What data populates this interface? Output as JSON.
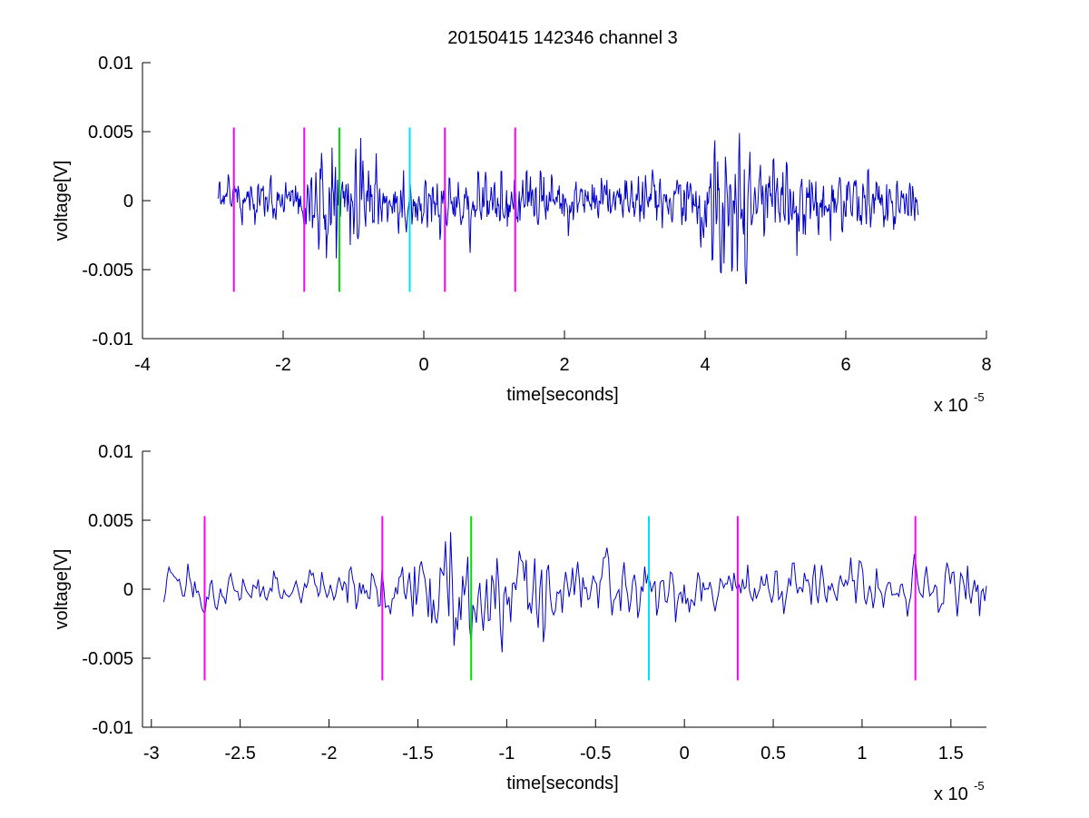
{
  "title": "20150415 142346 channel 3",
  "chart_data": [
    {
      "type": "line",
      "title": "20150415 142346 channel 3",
      "xlabel": "time[seconds]",
      "ylabel": "voltage[V]",
      "x_exponent_base": "x 10",
      "x_exponent_power": "-5",
      "xlim": [
        -4,
        8
      ],
      "ylim": [
        -0.01,
        0.01
      ],
      "x_ticks": [
        -4,
        -2,
        0,
        2,
        4,
        6,
        8
      ],
      "x_tick_labels": [
        "-4",
        "-2",
        "0",
        "2",
        "4",
        "6",
        "8"
      ],
      "y_ticks": [
        -0.01,
        -0.005,
        0,
        0.005,
        0.01
      ],
      "y_tick_labels": [
        "-0.01",
        "-0.005",
        "0",
        "0.005",
        "0.01"
      ],
      "grid": false,
      "series": [
        {
          "color": "#0000cc",
          "x_range": [
            -2.93,
            7.03
          ],
          "points": 1000,
          "amplitude_envelope": [
            [
              -2.93,
              0.0008
            ],
            [
              -2.0,
              0.0009
            ],
            [
              -1.5,
              0.0016
            ],
            [
              -1.3,
              0.0028
            ],
            [
              -1.0,
              0.0022
            ],
            [
              -0.5,
              0.0012
            ],
            [
              0.5,
              0.001
            ],
            [
              1.5,
              0.0012
            ],
            [
              2.5,
              0.0011
            ],
            [
              3.3,
              0.001
            ],
            [
              3.9,
              0.0012
            ],
            [
              4.2,
              0.004
            ],
            [
              4.4,
              0.004
            ],
            [
              4.8,
              0.002
            ],
            [
              5.5,
              0.0014
            ],
            [
              7.03,
              0.001
            ]
          ]
        }
      ],
      "markers": [
        {
          "x": -2.7,
          "y_range": [
            -0.0066,
            0.0053
          ],
          "color": "#ff00ff"
        },
        {
          "x": -1.7,
          "y_range": [
            -0.0066,
            0.0053
          ],
          "color": "#ff00ff"
        },
        {
          "x": -1.2,
          "y_range": [
            -0.0066,
            0.0053
          ],
          "color": "#00e000"
        },
        {
          "x": -0.2,
          "y_range": [
            -0.0066,
            0.0053
          ],
          "color": "#00e0ff"
        },
        {
          "x": 0.3,
          "y_range": [
            -0.0066,
            0.0053
          ],
          "color": "#ff00ff"
        },
        {
          "x": 1.3,
          "y_range": [
            -0.0066,
            0.0053
          ],
          "color": "#ff00ff"
        }
      ]
    },
    {
      "type": "line",
      "title": "",
      "xlabel": "time[seconds]",
      "ylabel": "voltage[V]",
      "x_exponent_base": "x 10",
      "x_exponent_power": "-5",
      "xlim": [
        -3.05,
        1.7
      ],
      "ylim": [
        -0.01,
        0.01
      ],
      "x_ticks": [
        -3,
        -2.5,
        -2,
        -1.5,
        -1,
        -0.5,
        0,
        0.5,
        1,
        1.5
      ],
      "x_tick_labels": [
        "-3",
        "-2.5",
        "-2",
        "-1.5",
        "-1",
        "-0.5",
        "0",
        "0.5",
        "1",
        "1.5"
      ],
      "y_ticks": [
        -0.01,
        -0.005,
        0,
        0.005,
        0.01
      ],
      "y_tick_labels": [
        "-0.01",
        "-0.005",
        "0",
        "0.005",
        "0.01"
      ],
      "grid": false,
      "series": [
        {
          "color": "#0000cc",
          "x_range": [
            -2.93,
            1.7
          ],
          "points": 480,
          "amplitude_envelope": [
            [
              -2.93,
              0.0008
            ],
            [
              -2.0,
              0.0009
            ],
            [
              -1.5,
              0.0016
            ],
            [
              -1.3,
              0.0028
            ],
            [
              -1.0,
              0.0022
            ],
            [
              -0.5,
              0.0012
            ],
            [
              0.5,
              0.001
            ],
            [
              1.7,
              0.0012
            ]
          ]
        }
      ],
      "markers": [
        {
          "x": -2.7,
          "y_range": [
            -0.0066,
            0.0053
          ],
          "color": "#ff00ff"
        },
        {
          "x": -1.7,
          "y_range": [
            -0.0066,
            0.0053
          ],
          "color": "#ff00ff"
        },
        {
          "x": -1.2,
          "y_range": [
            -0.0066,
            0.0053
          ],
          "color": "#00e000"
        },
        {
          "x": -0.2,
          "y_range": [
            -0.0066,
            0.0053
          ],
          "color": "#00e0ff"
        },
        {
          "x": 0.3,
          "y_range": [
            -0.0066,
            0.0053
          ],
          "color": "#ff00ff"
        },
        {
          "x": 1.3,
          "y_range": [
            -0.0066,
            0.0053
          ],
          "color": "#ff00ff"
        }
      ]
    }
  ]
}
